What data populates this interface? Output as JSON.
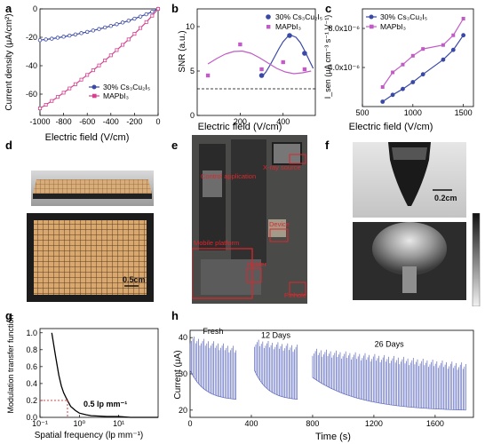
{
  "panels": {
    "a": {
      "letter": "a",
      "ylabel": "Current density (μA/cm²)",
      "xlabel": "Electric field (V/cm)"
    },
    "b": {
      "letter": "b",
      "ylabel": "SNR (a.u.)",
      "xlabel": "Electric field (V/cm)"
    },
    "c": {
      "letter": "c",
      "ylabel": "I_sen (μA cm⁻³ s⁻¹ V⁻¹)",
      "xlabel": "Electric field (V/cm)"
    },
    "d": {
      "letter": "d",
      "scale_label": "0.5cm"
    },
    "e": {
      "letter": "e",
      "labels": [
        "Control application",
        "X-ray source",
        "Device",
        "Mobile platform",
        "Holder",
        "Pinhole"
      ]
    },
    "f": {
      "letter": "f",
      "scale_label": "0.2cm"
    },
    "g": {
      "letter": "g",
      "ylabel": "Modulation transfer function",
      "xlabel": "Spatial frequency (lp mm⁻¹)",
      "annotation": "0.5 lp mm⁻¹"
    },
    "h": {
      "letter": "h",
      "ylabel": "Current (μA)",
      "xlabel": "Time (s)",
      "segment_labels": [
        "Fresh",
        "12 Days",
        "26 Days"
      ]
    }
  },
  "colors": {
    "blue": "#3a49a6",
    "magenta": "#d6418f",
    "purple": "#c15cc7",
    "trace": "#5f6bbf",
    "red": "#e0262b"
  },
  "chart_data": [
    {
      "id": "a",
      "type": "line",
      "xlabel": "Electric field (V/cm)",
      "ylabel": "Current density (μA/cm²)",
      "xlim": [
        -1000,
        0
      ],
      "ylim": [
        -75,
        0
      ],
      "xticks": [
        -1000,
        -800,
        -600,
        -400,
        -200,
        0
      ],
      "yticks": [
        -60,
        -40,
        -20,
        0
      ],
      "legend": "bottom-center",
      "x": [
        -1000,
        -950,
        -900,
        -850,
        -800,
        -750,
        -700,
        -650,
        -600,
        -550,
        -500,
        -450,
        -400,
        -350,
        -300,
        -250,
        -200,
        -150,
        -100,
        -50,
        0
      ],
      "series": [
        {
          "name": "30% Cs₃Cu₂I₅",
          "color": "#3a49a6",
          "values": [
            -22,
            -21.5,
            -21,
            -20.3,
            -19.6,
            -18.8,
            -18,
            -17.1,
            -16.2,
            -15.2,
            -14.2,
            -13.1,
            -12,
            -10.8,
            -9.6,
            -8.3,
            -6.9,
            -5.4,
            -3.8,
            -2,
            0
          ]
        },
        {
          "name": "MAPbI₃",
          "color": "#d6418f",
          "values": [
            -70,
            -67.5,
            -64.8,
            -62,
            -59,
            -56,
            -53,
            -49.8,
            -46.5,
            -43.2,
            -39.8,
            -36.3,
            -32.7,
            -29,
            -25.3,
            -21.5,
            -17.6,
            -13.5,
            -9.3,
            -4.8,
            0
          ]
        }
      ]
    },
    {
      "id": "b",
      "type": "scatter",
      "xlabel": "Electric field (V/cm)",
      "ylabel": "SNR (a.u.)",
      "xlim": [
        0,
        550
      ],
      "ylim": [
        0,
        12
      ],
      "xticks": [
        200,
        400
      ],
      "yticks": [
        0,
        5,
        10
      ],
      "legend": "top-right",
      "series": [
        {
          "name": "30% Cs₃Cu₂I₅",
          "color": "#3a49a6",
          "x": [
            300,
            430,
            500
          ],
          "y": [
            4.5,
            9.0,
            7.0
          ],
          "fit": {
            "x": [
              300,
              320,
              340,
              360,
              380,
              400,
              420,
              440,
              460,
              480,
              500,
              520,
              540
            ],
            "y": [
              4.3,
              4.9,
              5.7,
              6.6,
              7.5,
              8.3,
              8.85,
              9.0,
              8.8,
              8.2,
              7.3,
              6.3,
              5.3
            ]
          }
        },
        {
          "name": "MAPbI₃",
          "color": "#c15cc7",
          "x": [
            50,
            200,
            300,
            400,
            500
          ],
          "y": [
            4.5,
            8.0,
            5.2,
            6.0,
            5.2
          ],
          "fit": {
            "x": [
              50,
              90,
              130,
              170,
              210,
              250,
              290,
              330,
              370,
              410,
              450,
              490,
              530
            ],
            "y": [
              5.8,
              6.4,
              6.9,
              7.2,
              7.25,
              7.0,
              6.5,
              5.9,
              5.3,
              4.9,
              4.7,
              4.8,
              5.0
            ]
          }
        }
      ],
      "reference_line": {
        "y": 3.0,
        "style": "dashed"
      }
    },
    {
      "id": "c",
      "type": "line",
      "xlabel": "Electric field (V/cm)",
      "ylabel": "I_sen (μA cm⁻³ s⁻¹ V⁻¹)",
      "xlim": [
        500,
        1600
      ],
      "ylim": [
        0,
        1e-05
      ],
      "xticks": [
        500,
        1000,
        1500
      ],
      "yticks": [
        4e-06,
        8e-06
      ],
      "ytick_labels": [
        "4.0x10⁻⁶",
        "8.0x10⁻⁶"
      ],
      "legend": "top-left",
      "x": [
        700,
        800,
        900,
        1000,
        1100,
        1300,
        1400,
        1500
      ],
      "series": [
        {
          "name": "30% Cs₃Cu₂I₅",
          "color": "#3a49a6",
          "values": [
            5e-07,
            1.2e-06,
            1.8e-06,
            2.5e-06,
            3.3e-06,
            4.8e-06,
            5.8e-06,
            7.3e-06
          ]
        },
        {
          "name": "MAPbI₃",
          "color": "#c15cc7",
          "values": [
            2e-06,
            3.5e-06,
            4.3e-06,
            5.2e-06,
            5.9e-06,
            6.3e-06,
            7.3e-06,
            9e-06
          ]
        }
      ]
    },
    {
      "id": "g",
      "type": "line",
      "xlabel": "Spatial frequency (lp mm⁻¹)",
      "ylabel": "Modulation transfer function",
      "xscale": "log",
      "xlim": [
        0.1,
        100
      ],
      "ylim": [
        0,
        1.05
      ],
      "xticks": [
        0.1,
        1,
        10
      ],
      "xtick_labels": [
        "10⁻¹",
        "10⁰",
        "10¹"
      ],
      "yticks": [
        0.0,
        0.2,
        0.4,
        0.6,
        0.8,
        1.0
      ],
      "x": [
        0.2,
        0.25,
        0.3,
        0.35,
        0.4,
        0.45,
        0.5,
        0.6,
        0.8,
        1.0,
        1.5,
        2,
        5,
        10,
        20,
        50,
        100
      ],
      "values": [
        1.0,
        0.72,
        0.5,
        0.37,
        0.29,
        0.24,
        0.2,
        0.13,
        0.08,
        0.05,
        0.03,
        0.02,
        0.01,
        0.01,
        0.0,
        0.0,
        0.0
      ],
      "marker": {
        "x": 0.5,
        "y": 0.2,
        "label": "0.5 lp mm⁻¹"
      }
    },
    {
      "id": "h",
      "type": "line",
      "xlabel": "Time (s)",
      "ylabel": "Current (μA)",
      "xlim": [
        0,
        1850
      ],
      "ylim": [
        18,
        42
      ],
      "xticks": [
        0,
        400,
        800,
        1200,
        1600
      ],
      "yticks": [
        20,
        30,
        40
      ],
      "segments": [
        {
          "label": "Fresh",
          "t_start": 0,
          "t_end": 300,
          "peak_start": 39.5,
          "peak_end": 36.5,
          "base_start": 31,
          "base_end": 23
        },
        {
          "label": "12 Days",
          "t_start": 420,
          "t_end": 700,
          "peak_start": 38.5,
          "peak_end": 37,
          "base_start": 31,
          "base_end": 23
        },
        {
          "label": "26 Days",
          "t_start": 800,
          "t_end": 1800,
          "peak_start": 36,
          "peak_end": 32,
          "base_start": 29,
          "base_end": 20
        }
      ]
    }
  ]
}
